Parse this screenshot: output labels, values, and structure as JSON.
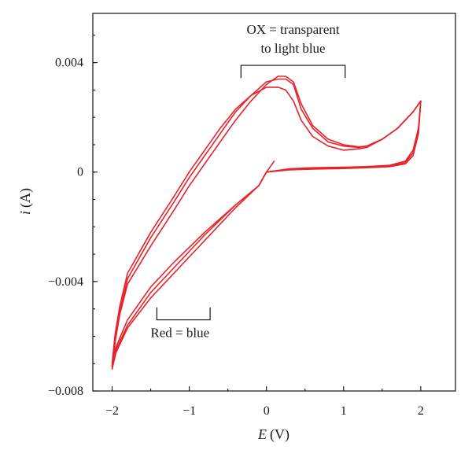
{
  "chart_data": {
    "type": "line",
    "title": "",
    "xlabel": {
      "var": "E",
      "unit": "(V)"
    },
    "ylabel": {
      "var": "i",
      "unit": "(A)"
    },
    "xlim": [
      -2.25,
      2.45
    ],
    "ylim": [
      -0.008,
      0.0058
    ],
    "x_ticks": [
      {
        "value": -2,
        "label": "−2"
      },
      {
        "value": -1,
        "label": "−1"
      },
      {
        "value": 0,
        "label": "0"
      },
      {
        "value": 1,
        "label": "1"
      },
      {
        "value": 2,
        "label": "2"
      }
    ],
    "y_ticks": [
      {
        "value": 0.004,
        "label": "0.004"
      },
      {
        "value": 0,
        "label": "0"
      },
      {
        "value": -0.004,
        "label": "−0.004"
      },
      {
        "value": -0.008,
        "label": "−0.008"
      }
    ],
    "grid": false,
    "color": "#e8222a",
    "annotations": [
      {
        "lines": [
          "OX = transparent",
          "to light blue"
        ],
        "x_range": [
          -0.33,
          1.02
        ],
        "y": 0.0039
      },
      {
        "lines": [
          "Red = blue"
        ],
        "x_range": [
          -1.42,
          -0.73
        ],
        "y": -0.0054
      }
    ],
    "series": [
      {
        "values": [
          [
            0.0,
            0.0
          ],
          [
            -0.1,
            -0.0005
          ],
          [
            -0.4,
            -0.0013
          ],
          [
            -0.8,
            -0.0025
          ],
          [
            -1.2,
            -0.0037
          ],
          [
            -1.5,
            -0.0046
          ],
          [
            -1.8,
            -0.0057
          ],
          [
            -1.95,
            -0.0066
          ],
          [
            -2.0,
            -0.0072
          ],
          [
            -1.96,
            -0.0062
          ],
          [
            -1.9,
            -0.0052
          ],
          [
            -1.8,
            -0.0041
          ],
          [
            -1.5,
            -0.0027
          ],
          [
            -1.2,
            -0.0014
          ],
          [
            -1.0,
            -0.0005
          ],
          [
            -0.8,
            0.0003
          ],
          [
            -0.6,
            0.0011
          ],
          [
            -0.4,
            0.0019
          ],
          [
            -0.2,
            0.0026
          ],
          [
            0.0,
            0.0032
          ],
          [
            0.15,
            0.0035
          ],
          [
            0.25,
            0.0035
          ],
          [
            0.35,
            0.0033
          ],
          [
            0.45,
            0.0025
          ],
          [
            0.6,
            0.0017
          ],
          [
            0.8,
            0.0012
          ],
          [
            1.0,
            0.001
          ],
          [
            1.2,
            0.00092
          ],
          [
            1.3,
            0.00095
          ],
          [
            1.5,
            0.0012
          ],
          [
            1.7,
            0.0016
          ],
          [
            1.9,
            0.0022
          ],
          [
            2.0,
            0.0026
          ],
          [
            1.97,
            0.0016
          ],
          [
            1.9,
            0.0008
          ],
          [
            1.8,
            0.0004
          ],
          [
            1.6,
            0.00025
          ],
          [
            1.3,
            0.0002
          ],
          [
            1.0,
            0.00018
          ],
          [
            0.6,
            0.00016
          ],
          [
            0.3,
            0.00012
          ],
          [
            0.0,
            0.0
          ],
          [
            -0.1,
            -0.0005
          ]
        ]
      },
      {
        "values": [
          [
            0.0,
            0.0
          ],
          [
            -0.1,
            -0.0005
          ],
          [
            -0.4,
            -0.0012
          ],
          [
            -0.8,
            -0.0023
          ],
          [
            -1.2,
            -0.0035
          ],
          [
            -1.5,
            -0.0044
          ],
          [
            -1.8,
            -0.0056
          ],
          [
            -1.95,
            -0.0065
          ],
          [
            -2.0,
            -0.0071
          ],
          [
            -1.96,
            -0.0061
          ],
          [
            -1.9,
            -0.0051
          ],
          [
            -1.8,
            -0.0039
          ],
          [
            -1.5,
            -0.0024
          ],
          [
            -1.2,
            -0.0011
          ],
          [
            -1.0,
            -0.0002
          ],
          [
            -0.8,
            0.0006
          ],
          [
            -0.6,
            0.0014
          ],
          [
            -0.4,
            0.0022
          ],
          [
            -0.2,
            0.0028
          ],
          [
            0.0,
            0.0033
          ],
          [
            0.15,
            0.0034
          ],
          [
            0.25,
            0.0034
          ],
          [
            0.35,
            0.0032
          ],
          [
            0.45,
            0.0023
          ],
          [
            0.6,
            0.0016
          ],
          [
            0.8,
            0.0011
          ],
          [
            1.0,
            0.00095
          ],
          [
            1.2,
            0.0009
          ],
          [
            1.3,
            0.00095
          ],
          [
            1.5,
            0.0012
          ],
          [
            1.7,
            0.0016
          ],
          [
            1.9,
            0.0022
          ],
          [
            2.0,
            0.0026
          ],
          [
            1.97,
            0.0015
          ],
          [
            1.9,
            0.0007
          ],
          [
            1.8,
            0.00035
          ],
          [
            1.6,
            0.00022
          ],
          [
            1.3,
            0.00018
          ],
          [
            1.0,
            0.00015
          ],
          [
            0.6,
            0.00013
          ],
          [
            0.3,
            0.0001
          ],
          [
            0.0,
            0.0
          ]
        ]
      },
      {
        "values": [
          [
            0.0,
            0.0
          ],
          [
            -0.1,
            -0.0005
          ],
          [
            -0.4,
            -0.0012
          ],
          [
            -0.8,
            -0.0022
          ],
          [
            -1.2,
            -0.0033
          ],
          [
            -1.5,
            -0.0042
          ],
          [
            -1.8,
            -0.0054
          ],
          [
            -1.95,
            -0.0064
          ],
          [
            -2.0,
            -0.007
          ],
          [
            -1.96,
            -0.0059
          ],
          [
            -1.9,
            -0.0049
          ],
          [
            -1.8,
            -0.0037
          ],
          [
            -1.5,
            -0.0022
          ],
          [
            -1.2,
            -0.0009
          ],
          [
            -1.0,
            0.0
          ],
          [
            -0.8,
            0.0008
          ],
          [
            -0.6,
            0.0016
          ],
          [
            -0.4,
            0.0023
          ],
          [
            -0.2,
            0.0028
          ],
          [
            0.0,
            0.0031
          ],
          [
            0.15,
            0.0031
          ],
          [
            0.25,
            0.003
          ],
          [
            0.35,
            0.0026
          ],
          [
            0.45,
            0.0019
          ],
          [
            0.6,
            0.0013
          ],
          [
            0.8,
            0.00095
          ],
          [
            1.0,
            0.0008
          ],
          [
            1.2,
            0.00085
          ],
          [
            1.3,
            0.0009
          ],
          [
            1.5,
            0.0012
          ],
          [
            1.7,
            0.0016
          ],
          [
            1.9,
            0.0022
          ],
          [
            2.0,
            0.0026
          ],
          [
            1.97,
            0.0014
          ],
          [
            1.9,
            0.0006
          ],
          [
            1.8,
            0.0003
          ],
          [
            1.6,
            0.0002
          ],
          [
            1.3,
            0.00016
          ],
          [
            1.0,
            0.00013
          ],
          [
            0.6,
            0.00011
          ],
          [
            0.3,
            8e-05
          ],
          [
            0.0,
            0.0
          ],
          [
            0.05,
            0.0002
          ],
          [
            0.1,
            0.0004
          ]
        ]
      }
    ]
  }
}
